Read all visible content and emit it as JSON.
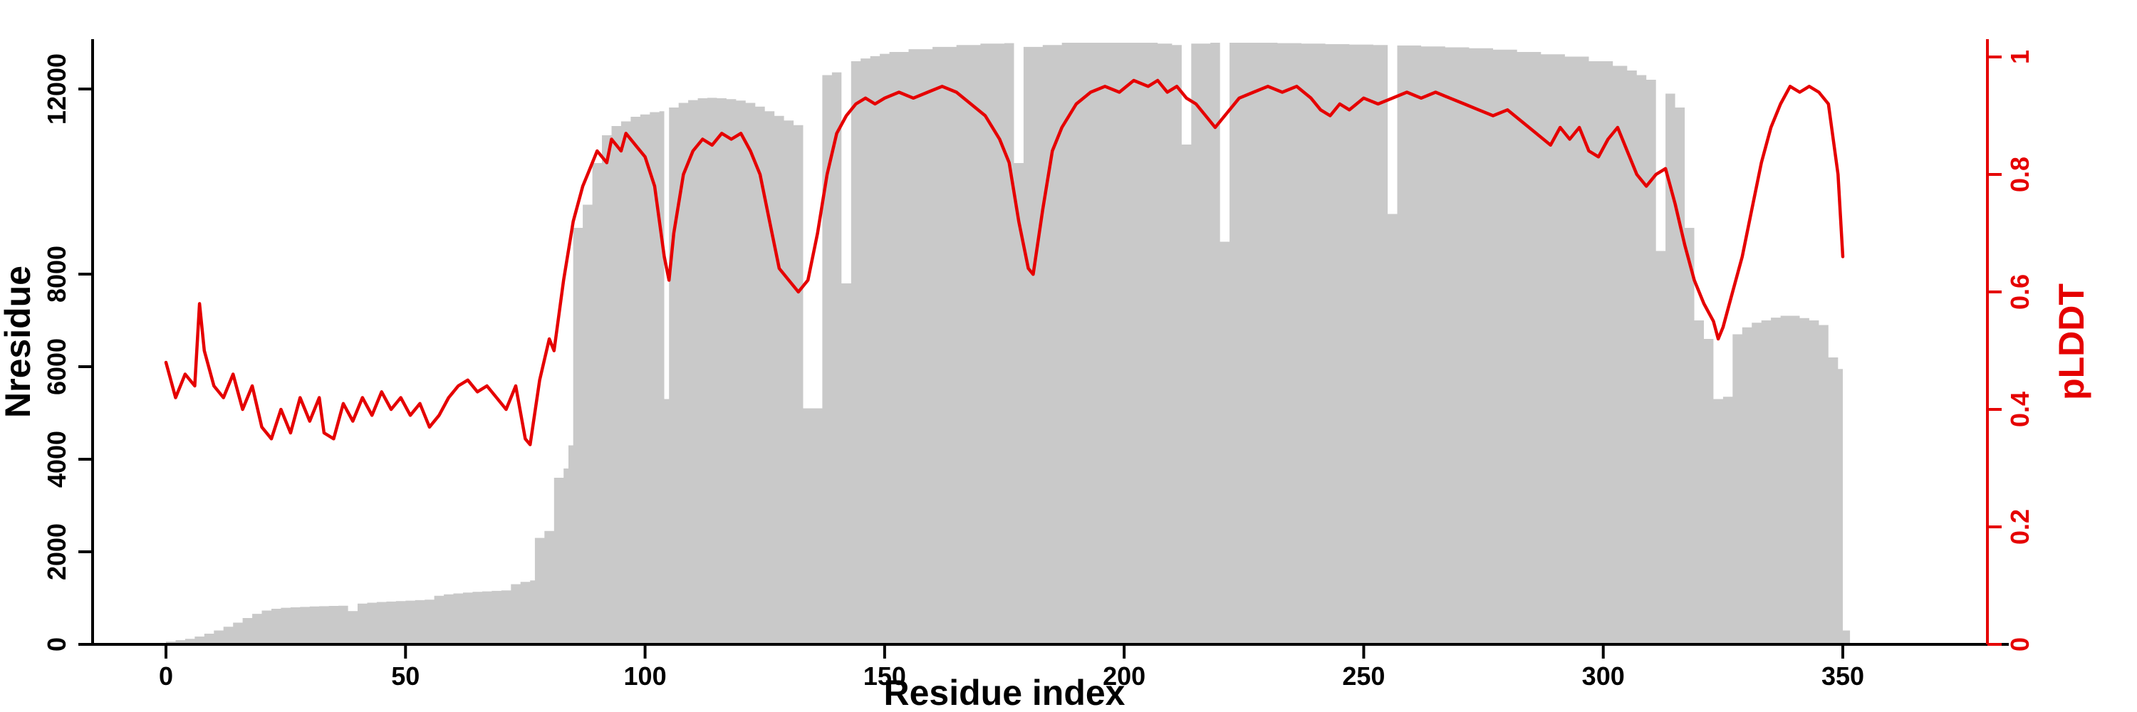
{
  "chart_data": {
    "type": "bar",
    "title": "",
    "xlabel": "Residue index",
    "ylabel_left": "Nresidue",
    "ylabel_right": "pLDDT",
    "legend": [],
    "grid": false,
    "xlim": [
      -2,
      355
    ],
    "ylim_left": [
      0,
      13000
    ],
    "ylim_right": [
      0,
      1
    ],
    "bar_color": "#c9c9c9",
    "line_color": "#e50000",
    "x_ticks": {
      "values": [
        0,
        50,
        100,
        150,
        200,
        250,
        300,
        350
      ],
      "labels": [
        "0",
        "50",
        "100",
        "150",
        "200",
        "250",
        "300",
        "350"
      ]
    },
    "left_ticks": {
      "values": [
        0,
        2000,
        4000,
        6000,
        8000,
        12000
      ],
      "labels": [
        "0",
        "2000",
        "4000",
        "6000",
        "8000",
        "12000"
      ]
    },
    "right_ticks": {
      "values": [
        0,
        0.2,
        0.4,
        0.6,
        0.8,
        1
      ],
      "labels": [
        "0",
        "0.2",
        "0.4",
        "0.6",
        "0.8",
        "1"
      ]
    },
    "series": [
      {
        "name": "Nresidue",
        "type": "bar",
        "axis": "left"
      },
      {
        "name": "pLDDT",
        "type": "line",
        "axis": "right"
      }
    ],
    "bars": [
      [
        0,
        60
      ],
      [
        2,
        90
      ],
      [
        4,
        120
      ],
      [
        6,
        170
      ],
      [
        8,
        230
      ],
      [
        10,
        300
      ],
      [
        12,
        380
      ],
      [
        14,
        470
      ],
      [
        16,
        570
      ],
      [
        18,
        660
      ],
      [
        20,
        730
      ],
      [
        22,
        770
      ],
      [
        24,
        790
      ],
      [
        26,
        800
      ],
      [
        28,
        810
      ],
      [
        30,
        820
      ],
      [
        32,
        825
      ],
      [
        34,
        830
      ],
      [
        36,
        835
      ],
      [
        38,
        720
      ],
      [
        40,
        880
      ],
      [
        42,
        900
      ],
      [
        44,
        915
      ],
      [
        46,
        925
      ],
      [
        48,
        935
      ],
      [
        50,
        945
      ],
      [
        52,
        955
      ],
      [
        54,
        965
      ],
      [
        56,
        1050
      ],
      [
        58,
        1080
      ],
      [
        60,
        1100
      ],
      [
        62,
        1120
      ],
      [
        64,
        1135
      ],
      [
        66,
        1145
      ],
      [
        68,
        1155
      ],
      [
        70,
        1165
      ],
      [
        72,
        1300
      ],
      [
        74,
        1350
      ],
      [
        76,
        1380
      ],
      [
        77,
        2300
      ],
      [
        79,
        2450
      ],
      [
        81,
        3600
      ],
      [
        83,
        3800
      ],
      [
        84,
        4300
      ],
      [
        85,
        9000
      ],
      [
        87,
        9500
      ],
      [
        89,
        10400
      ],
      [
        91,
        11000
      ],
      [
        93,
        11200
      ],
      [
        95,
        11300
      ],
      [
        97,
        11400
      ],
      [
        99,
        11450
      ],
      [
        101,
        11500
      ],
      [
        103,
        11520
      ],
      [
        104,
        5300
      ],
      [
        105,
        11600
      ],
      [
        107,
        11700
      ],
      [
        109,
        11760
      ],
      [
        111,
        11800
      ],
      [
        113,
        11810
      ],
      [
        115,
        11800
      ],
      [
        117,
        11780
      ],
      [
        119,
        11750
      ],
      [
        121,
        11700
      ],
      [
        123,
        11620
      ],
      [
        125,
        11520
      ],
      [
        127,
        11420
      ],
      [
        129,
        11320
      ],
      [
        131,
        11220
      ],
      [
        133,
        5100
      ],
      [
        135,
        5100
      ],
      [
        137,
        12300
      ],
      [
        139,
        12360
      ],
      [
        141,
        7800
      ],
      [
        143,
        12600
      ],
      [
        145,
        12660
      ],
      [
        147,
        12710
      ],
      [
        149,
        12760
      ],
      [
        151,
        12800
      ],
      [
        155,
        12860
      ],
      [
        160,
        12910
      ],
      [
        165,
        12950
      ],
      [
        170,
        12980
      ],
      [
        175,
        12990
      ],
      [
        177,
        10400
      ],
      [
        179,
        12910
      ],
      [
        183,
        12950
      ],
      [
        187,
        13000
      ],
      [
        192,
        13000
      ],
      [
        197,
        13000
      ],
      [
        202,
        13000
      ],
      [
        207,
        12980
      ],
      [
        210,
        12950
      ],
      [
        212,
        10800
      ],
      [
        214,
        12980
      ],
      [
        218,
        13000
      ],
      [
        220,
        8700
      ],
      [
        222,
        13000
      ],
      [
        227,
        13000
      ],
      [
        232,
        12990
      ],
      [
        237,
        12980
      ],
      [
        242,
        12970
      ],
      [
        247,
        12960
      ],
      [
        252,
        12950
      ],
      [
        255,
        9300
      ],
      [
        257,
        12940
      ],
      [
        262,
        12920
      ],
      [
        267,
        12900
      ],
      [
        272,
        12880
      ],
      [
        277,
        12850
      ],
      [
        282,
        12800
      ],
      [
        287,
        12750
      ],
      [
        292,
        12700
      ],
      [
        297,
        12600
      ],
      [
        302,
        12500
      ],
      [
        305,
        12400
      ],
      [
        307,
        12300
      ],
      [
        309,
        12200
      ],
      [
        311,
        8500
      ],
      [
        313,
        11900
      ],
      [
        315,
        11600
      ],
      [
        317,
        9000
      ],
      [
        319,
        7000
      ],
      [
        321,
        6600
      ],
      [
        323,
        5300
      ],
      [
        325,
        5350
      ],
      [
        327,
        6700
      ],
      [
        329,
        6850
      ],
      [
        331,
        6950
      ],
      [
        333,
        7000
      ],
      [
        335,
        7060
      ],
      [
        337,
        7100
      ],
      [
        339,
        7100
      ],
      [
        341,
        7050
      ],
      [
        343,
        7000
      ],
      [
        345,
        6900
      ],
      [
        347,
        6200
      ],
      [
        349,
        5950
      ],
      [
        350,
        300
      ]
    ],
    "line": [
      [
        0,
        0.48
      ],
      [
        2,
        0.42
      ],
      [
        4,
        0.46
      ],
      [
        6,
        0.44
      ],
      [
        7,
        0.58
      ],
      [
        8,
        0.5
      ],
      [
        10,
        0.44
      ],
      [
        12,
        0.42
      ],
      [
        14,
        0.46
      ],
      [
        16,
        0.4
      ],
      [
        18,
        0.44
      ],
      [
        20,
        0.37
      ],
      [
        22,
        0.35
      ],
      [
        24,
        0.4
      ],
      [
        26,
        0.36
      ],
      [
        28,
        0.42
      ],
      [
        30,
        0.38
      ],
      [
        32,
        0.42
      ],
      [
        33,
        0.36
      ],
      [
        35,
        0.35
      ],
      [
        37,
        0.41
      ],
      [
        39,
        0.38
      ],
      [
        41,
        0.42
      ],
      [
        43,
        0.39
      ],
      [
        45,
        0.43
      ],
      [
        47,
        0.4
      ],
      [
        49,
        0.42
      ],
      [
        51,
        0.39
      ],
      [
        53,
        0.41
      ],
      [
        55,
        0.37
      ],
      [
        57,
        0.39
      ],
      [
        59,
        0.42
      ],
      [
        61,
        0.44
      ],
      [
        63,
        0.45
      ],
      [
        65,
        0.43
      ],
      [
        67,
        0.44
      ],
      [
        69,
        0.42
      ],
      [
        71,
        0.4
      ],
      [
        73,
        0.44
      ],
      [
        75,
        0.35
      ],
      [
        76,
        0.34
      ],
      [
        78,
        0.45
      ],
      [
        80,
        0.52
      ],
      [
        81,
        0.5
      ],
      [
        83,
        0.62
      ],
      [
        85,
        0.72
      ],
      [
        87,
        0.78
      ],
      [
        88,
        0.8
      ],
      [
        90,
        0.84
      ],
      [
        92,
        0.82
      ],
      [
        93,
        0.86
      ],
      [
        95,
        0.84
      ],
      [
        96,
        0.87
      ],
      [
        98,
        0.85
      ],
      [
        100,
        0.83
      ],
      [
        102,
        0.78
      ],
      [
        104,
        0.66
      ],
      [
        105,
        0.62
      ],
      [
        106,
        0.7
      ],
      [
        108,
        0.8
      ],
      [
        110,
        0.84
      ],
      [
        112,
        0.86
      ],
      [
        114,
        0.85
      ],
      [
        116,
        0.87
      ],
      [
        118,
        0.86
      ],
      [
        120,
        0.87
      ],
      [
        122,
        0.84
      ],
      [
        124,
        0.8
      ],
      [
        126,
        0.72
      ],
      [
        128,
        0.64
      ],
      [
        130,
        0.62
      ],
      [
        132,
        0.6
      ],
      [
        134,
        0.62
      ],
      [
        136,
        0.7
      ],
      [
        138,
        0.8
      ],
      [
        140,
        0.87
      ],
      [
        142,
        0.9
      ],
      [
        144,
        0.92
      ],
      [
        146,
        0.93
      ],
      [
        148,
        0.92
      ],
      [
        150,
        0.93
      ],
      [
        153,
        0.94
      ],
      [
        156,
        0.93
      ],
      [
        159,
        0.94
      ],
      [
        162,
        0.95
      ],
      [
        165,
        0.94
      ],
      [
        168,
        0.92
      ],
      [
        171,
        0.9
      ],
      [
        174,
        0.86
      ],
      [
        176,
        0.82
      ],
      [
        178,
        0.72
      ],
      [
        180,
        0.64
      ],
      [
        181,
        0.63
      ],
      [
        183,
        0.74
      ],
      [
        185,
        0.84
      ],
      [
        187,
        0.88
      ],
      [
        190,
        0.92
      ],
      [
        193,
        0.94
      ],
      [
        196,
        0.95
      ],
      [
        199,
        0.94
      ],
      [
        202,
        0.96
      ],
      [
        205,
        0.95
      ],
      [
        207,
        0.96
      ],
      [
        209,
        0.94
      ],
      [
        211,
        0.95
      ],
      [
        213,
        0.93
      ],
      [
        215,
        0.92
      ],
      [
        217,
        0.9
      ],
      [
        219,
        0.88
      ],
      [
        221,
        0.9
      ],
      [
        224,
        0.93
      ],
      [
        227,
        0.94
      ],
      [
        230,
        0.95
      ],
      [
        233,
        0.94
      ],
      [
        236,
        0.95
      ],
      [
        239,
        0.93
      ],
      [
        241,
        0.91
      ],
      [
        243,
        0.9
      ],
      [
        245,
        0.92
      ],
      [
        247,
        0.91
      ],
      [
        250,
        0.93
      ],
      [
        253,
        0.92
      ],
      [
        256,
        0.93
      ],
      [
        259,
        0.94
      ],
      [
        262,
        0.93
      ],
      [
        265,
        0.94
      ],
      [
        268,
        0.93
      ],
      [
        271,
        0.92
      ],
      [
        274,
        0.91
      ],
      [
        277,
        0.9
      ],
      [
        280,
        0.91
      ],
      [
        283,
        0.89
      ],
      [
        286,
        0.87
      ],
      [
        289,
        0.85
      ],
      [
        291,
        0.88
      ],
      [
        293,
        0.86
      ],
      [
        295,
        0.88
      ],
      [
        297,
        0.84
      ],
      [
        299,
        0.83
      ],
      [
        301,
        0.86
      ],
      [
        303,
        0.88
      ],
      [
        305,
        0.84
      ],
      [
        307,
        0.8
      ],
      [
        309,
        0.78
      ],
      [
        311,
        0.8
      ],
      [
        313,
        0.81
      ],
      [
        315,
        0.75
      ],
      [
        317,
        0.68
      ],
      [
        319,
        0.62
      ],
      [
        321,
        0.58
      ],
      [
        323,
        0.55
      ],
      [
        324,
        0.52
      ],
      [
        325,
        0.54
      ],
      [
        327,
        0.6
      ],
      [
        329,
        0.66
      ],
      [
        331,
        0.74
      ],
      [
        333,
        0.82
      ],
      [
        335,
        0.88
      ],
      [
        337,
        0.92
      ],
      [
        339,
        0.95
      ],
      [
        341,
        0.94
      ],
      [
        343,
        0.95
      ],
      [
        345,
        0.94
      ],
      [
        347,
        0.92
      ],
      [
        349,
        0.8
      ],
      [
        350,
        0.66
      ]
    ]
  }
}
